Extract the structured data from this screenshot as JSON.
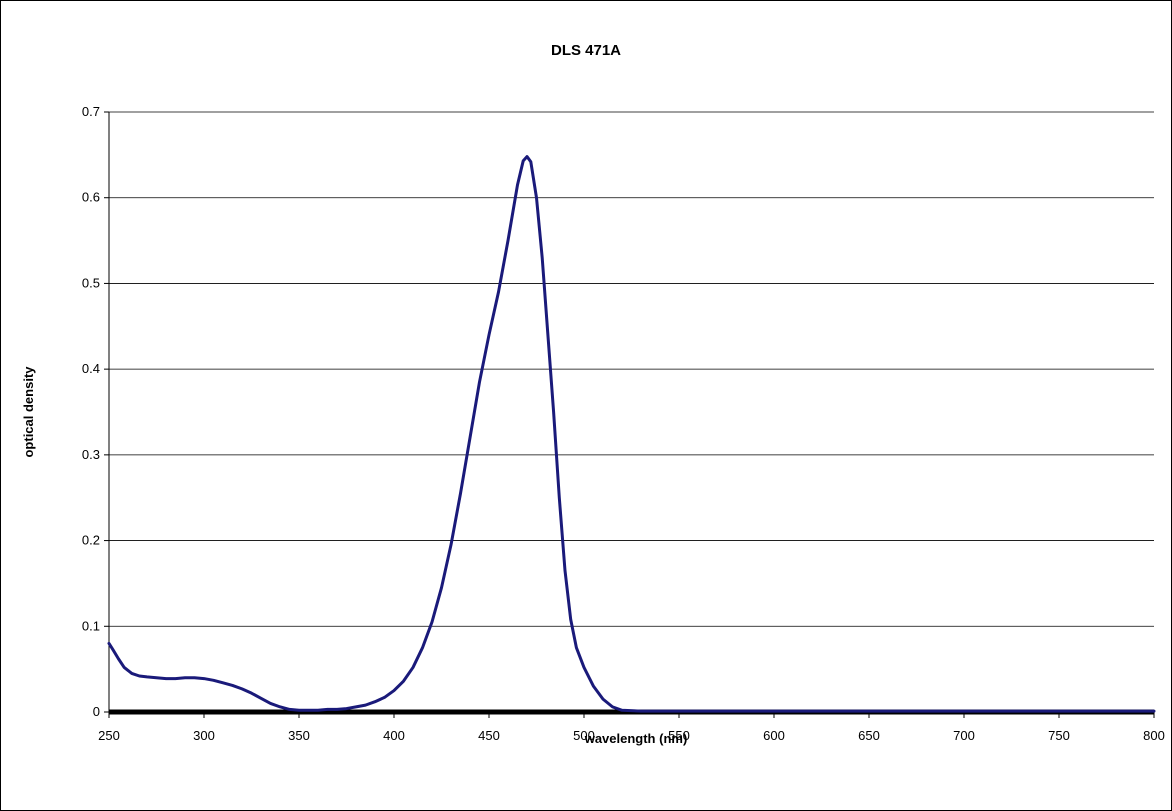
{
  "chart_data": {
    "type": "line",
    "title": "DLS 471A",
    "xlabel": "wavelength (nm)",
    "ylabel": "optical density",
    "xlim": [
      250,
      800
    ],
    "ylim": [
      0,
      0.7
    ],
    "x_ticks": [
      "250",
      "300",
      "350",
      "400",
      "450",
      "500",
      "550",
      "600",
      "650",
      "700",
      "750",
      "800"
    ],
    "y_ticks": [
      "0",
      "0.1",
      "0.2",
      "0.3",
      "0.4",
      "0.5",
      "0.6",
      "0.7"
    ],
    "grid": true,
    "legend": "none",
    "series": [
      {
        "color": "#1a1a7a",
        "points": [
          [
            250,
            0.08
          ],
          [
            252,
            0.073
          ],
          [
            255,
            0.062
          ],
          [
            258,
            0.052
          ],
          [
            262,
            0.045
          ],
          [
            266,
            0.042
          ],
          [
            270,
            0.041
          ],
          [
            275,
            0.04
          ],
          [
            280,
            0.039
          ],
          [
            285,
            0.039
          ],
          [
            290,
            0.04
          ],
          [
            295,
            0.04
          ],
          [
            300,
            0.039
          ],
          [
            305,
            0.037
          ],
          [
            310,
            0.034
          ],
          [
            315,
            0.031
          ],
          [
            320,
            0.027
          ],
          [
            325,
            0.022
          ],
          [
            330,
            0.016
          ],
          [
            335,
            0.01
          ],
          [
            340,
            0.006
          ],
          [
            345,
            0.003
          ],
          [
            350,
            0.002
          ],
          [
            355,
            0.002
          ],
          [
            360,
            0.002
          ],
          [
            365,
            0.003
          ],
          [
            370,
            0.003
          ],
          [
            375,
            0.004
          ],
          [
            380,
            0.006
          ],
          [
            385,
            0.008
          ],
          [
            390,
            0.012
          ],
          [
            395,
            0.017
          ],
          [
            400,
            0.025
          ],
          [
            405,
            0.036
          ],
          [
            410,
            0.052
          ],
          [
            415,
            0.075
          ],
          [
            420,
            0.105
          ],
          [
            425,
            0.145
          ],
          [
            430,
            0.195
          ],
          [
            435,
            0.255
          ],
          [
            440,
            0.32
          ],
          [
            445,
            0.385
          ],
          [
            450,
            0.44
          ],
          [
            455,
            0.49
          ],
          [
            460,
            0.55
          ],
          [
            465,
            0.615
          ],
          [
            468,
            0.643
          ],
          [
            470,
            0.648
          ],
          [
            472,
            0.642
          ],
          [
            475,
            0.6
          ],
          [
            478,
            0.53
          ],
          [
            481,
            0.44
          ],
          [
            484,
            0.35
          ],
          [
            487,
            0.25
          ],
          [
            490,
            0.165
          ],
          [
            493,
            0.108
          ],
          [
            496,
            0.075
          ],
          [
            500,
            0.052
          ],
          [
            505,
            0.03
          ],
          [
            510,
            0.015
          ],
          [
            515,
            0.006
          ],
          [
            520,
            0.002
          ],
          [
            530,
            0.001
          ],
          [
            550,
            0.001
          ],
          [
            600,
            0.001
          ],
          [
            650,
            0.001
          ],
          [
            700,
            0.001
          ],
          [
            750,
            0.001
          ],
          [
            800,
            0.001
          ]
        ]
      }
    ]
  }
}
